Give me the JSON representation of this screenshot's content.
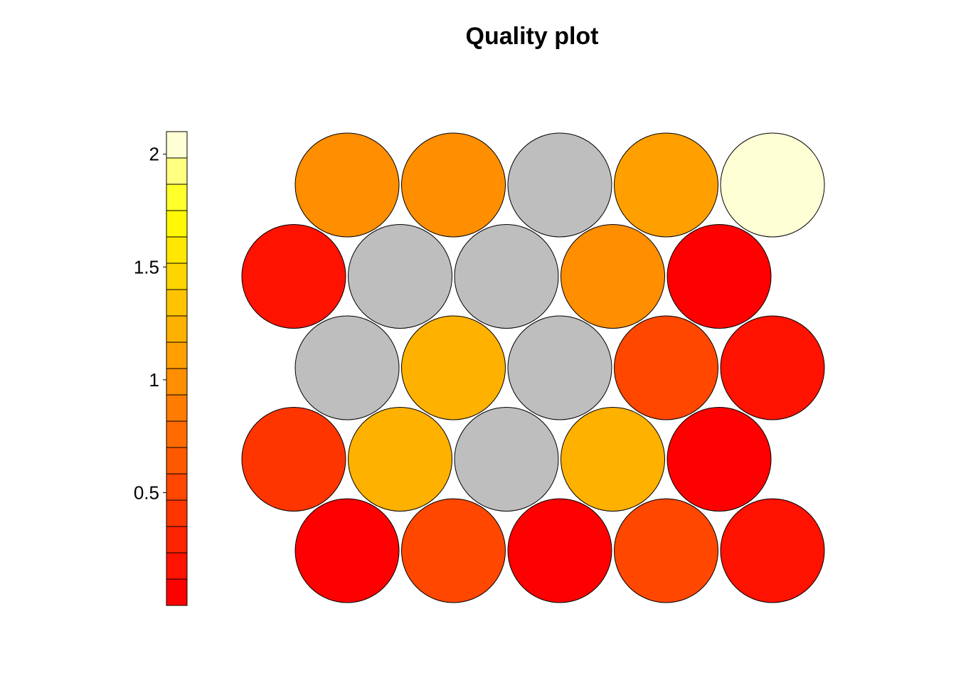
{
  "chart_data": {
    "type": "heatmap",
    "title": "Quality plot",
    "xlabel": "",
    "ylabel": "",
    "grid": {
      "layout": "hexagonal",
      "columns": 5,
      "rows": 5
    },
    "colorbar": {
      "position": "left",
      "range": [
        0,
        2.1
      ],
      "ticks": [
        2,
        1.5,
        1,
        0.5
      ],
      "tick_labels": [
        "2",
        "1.5",
        "1",
        "0.5"
      ],
      "colors": [
        "#ff0000",
        "#ff1200",
        "#ff2400",
        "#ff3500",
        "#ff4700",
        "#ff5900",
        "#ff6b00",
        "#ff7c00",
        "#ff8e00",
        "#ffa000",
        "#ffb100",
        "#ffc300",
        "#ffd500",
        "#ffe700",
        "#fff800",
        "#ffff2a",
        "#ffff80",
        "#ffffd5"
      ]
    },
    "missing_color": "#bebebe",
    "cells": [
      [
        {
          "v": 1.0
        },
        {
          "v": 1.0
        },
        {
          "v": null
        },
        {
          "v": 1.05
        },
        {
          "v": 2.05
        }
      ],
      [
        {
          "v": 0.15
        },
        {
          "v": null
        },
        {
          "v": null
        },
        {
          "v": 1.0
        },
        {
          "v": 0.02
        }
      ],
      [
        {
          "v": null
        },
        {
          "v": 1.25
        },
        {
          "v": null
        },
        {
          "v": 0.55
        },
        {
          "v": 0.2
        }
      ],
      [
        {
          "v": 0.4
        },
        {
          "v": 1.25
        },
        {
          "v": null
        },
        {
          "v": 1.25
        },
        {
          "v": 0.02
        }
      ],
      [
        {
          "v": 0.1
        },
        {
          "v": 0.55
        },
        {
          "v": 0.02
        },
        {
          "v": 0.55
        },
        {
          "v": 0.2
        }
      ]
    ]
  }
}
